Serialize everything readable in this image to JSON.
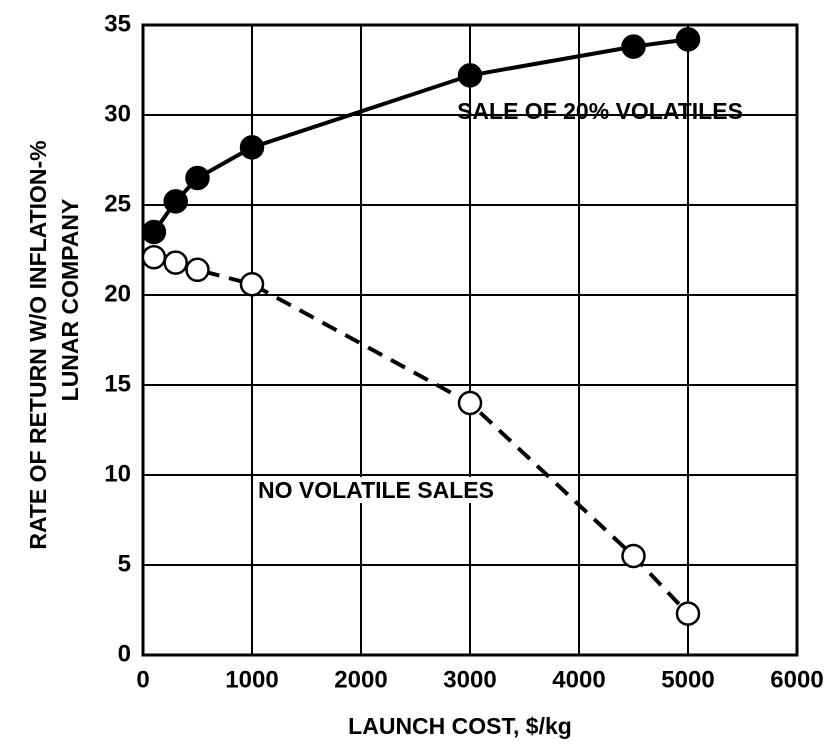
{
  "chart_data": {
    "type": "line",
    "x_label": "LAUNCH COST, $/kg",
    "y_label": [
      "RATE OF RETURN W/O INFLATION-%",
      "LUNAR COMPANY"
    ],
    "annotations": [
      "SALE OF 20% VOLATILES",
      "NO VOLATILE SALES"
    ],
    "series": [
      {
        "name": "SALE OF 20% VOLATILES",
        "color": "#000000",
        "marker": "filled",
        "dashed": false,
        "x": [
          100,
          300,
          500,
          1000,
          3000,
          4500,
          5000
        ],
        "values": [
          23.5,
          25.2,
          26.5,
          28.2,
          32.2,
          33.8,
          34.2
        ]
      },
      {
        "name": "NO VOLATILE SALES",
        "color": "#000000",
        "marker": "open",
        "dashed": true,
        "x": [
          100,
          300,
          500,
          1000,
          3000,
          4500,
          5000
        ],
        "values": [
          22.1,
          21.8,
          21.4,
          20.6,
          14.0,
          5.5,
          2.3
        ]
      }
    ],
    "xlim": [
      0,
      6000
    ],
    "xticks": [
      0,
      1000,
      2000,
      3000,
      4000,
      5000,
      6000
    ],
    "ylim": [
      0,
      35
    ],
    "yticks": [
      0,
      5,
      10,
      15,
      20,
      25,
      30,
      35
    ],
    "grid": true
  }
}
